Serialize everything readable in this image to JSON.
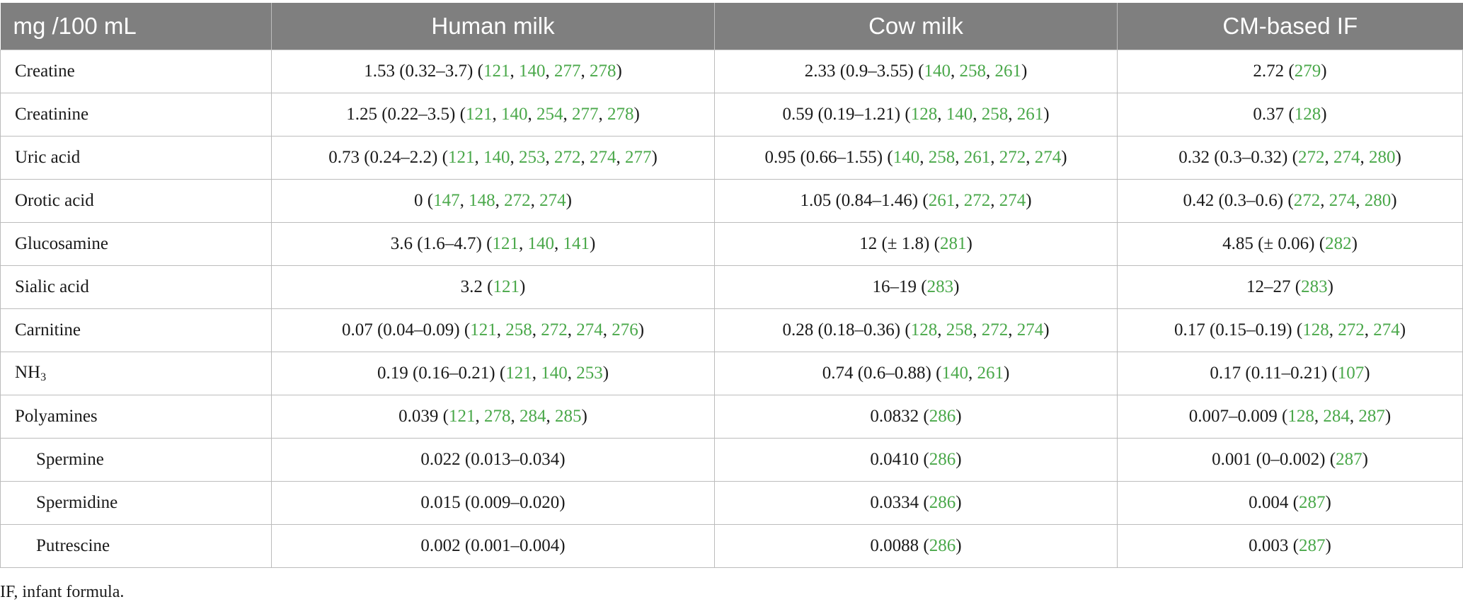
{
  "table": {
    "headers": [
      "mg /100 mL",
      "Human milk",
      "Cow milk",
      "CM-based IF"
    ],
    "rows": [
      {
        "label": "Creatine",
        "sub": false,
        "cells": [
          {
            "value": "1.53 (0.32–3.7)",
            "refs": [
              "121",
              "140",
              "277",
              "278"
            ]
          },
          {
            "value": "2.33 (0.9–3.55)",
            "refs": [
              "140",
              "258",
              "261"
            ]
          },
          {
            "value": "2.72",
            "refs": [
              "279"
            ]
          }
        ]
      },
      {
        "label": "Creatinine",
        "sub": false,
        "cells": [
          {
            "value": "1.25 (0.22–3.5)",
            "refs": [
              "121",
              "140",
              "254",
              "277",
              "278"
            ]
          },
          {
            "value": "0.59 (0.19–1.21)",
            "refs": [
              "128",
              "140",
              "258",
              "261"
            ]
          },
          {
            "value": "0.37",
            "refs": [
              "128"
            ]
          }
        ]
      },
      {
        "label": "Uric acid",
        "sub": false,
        "cells": [
          {
            "value": "0.73 (0.24–2.2)",
            "refs": [
              "121",
              "140",
              "253",
              "272",
              "274",
              "277"
            ]
          },
          {
            "value": "0.95 (0.66–1.55)",
            "refs": [
              "140",
              "258",
              "261",
              "272",
              "274"
            ]
          },
          {
            "value": "0.32 (0.3–0.32)",
            "refs": [
              "272",
              "274",
              "280"
            ]
          }
        ]
      },
      {
        "label": "Orotic acid",
        "sub": false,
        "cells": [
          {
            "value": "0",
            "refs": [
              "147",
              "148",
              "272",
              "274"
            ]
          },
          {
            "value": "1.05 (0.84–1.46)",
            "refs": [
              "261",
              "272",
              "274"
            ]
          },
          {
            "value": "0.42 (0.3–0.6)",
            "refs": [
              "272",
              "274",
              "280"
            ]
          }
        ]
      },
      {
        "label": "Glucosamine",
        "sub": false,
        "cells": [
          {
            "value": "3.6 (1.6–4.7)",
            "refs": [
              "121",
              "140",
              "141"
            ]
          },
          {
            "value": "12 (± 1.8)",
            "refs": [
              "281"
            ]
          },
          {
            "value": "4.85 (± 0.06)",
            "refs": [
              "282"
            ]
          }
        ]
      },
      {
        "label": "Sialic acid",
        "sub": false,
        "cells": [
          {
            "value": "3.2",
            "refs": [
              "121"
            ]
          },
          {
            "value": "16–19",
            "refs": [
              "283"
            ]
          },
          {
            "value": "12–27",
            "refs": [
              "283"
            ]
          }
        ]
      },
      {
        "label": "Carnitine",
        "sub": false,
        "cells": [
          {
            "value": "0.07 (0.04–0.09)",
            "refs": [
              "121",
              "258",
              "272",
              "274",
              "276"
            ]
          },
          {
            "value": "0.28 (0.18–0.36)",
            "refs": [
              "128",
              "258",
              "272",
              "274"
            ]
          },
          {
            "value": "0.17 (0.15–0.19)",
            "refs": [
              "128",
              "272",
              "274"
            ]
          }
        ]
      },
      {
        "label": "NH",
        "label_sub": "3",
        "sub": false,
        "cells": [
          {
            "value": "0.19 (0.16–0.21)",
            "refs": [
              "121",
              "140",
              "253"
            ]
          },
          {
            "value": "0.74 (0.6–0.88)",
            "refs": [
              "140",
              "261"
            ]
          },
          {
            "value": "0.17 (0.11–0.21)",
            "refs": [
              "107"
            ]
          }
        ]
      },
      {
        "label": "Polyamines",
        "sub": false,
        "cells": [
          {
            "value": "0.039",
            "refs": [
              "121",
              "278",
              "284",
              "285"
            ]
          },
          {
            "value": "0.0832",
            "refs": [
              "286"
            ]
          },
          {
            "value": "0.007–0.009",
            "refs": [
              "128",
              "284",
              "287"
            ]
          }
        ]
      },
      {
        "label": "Spermine",
        "sub": true,
        "cells": [
          {
            "value": "0.022 (0.013–0.034)",
            "refs": []
          },
          {
            "value": "0.0410",
            "refs": [
              "286"
            ]
          },
          {
            "value": "0.001 (0–0.002)",
            "refs": [
              "287"
            ]
          }
        ]
      },
      {
        "label": "Spermidine",
        "sub": true,
        "cells": [
          {
            "value": "0.015 (0.009–0.020)",
            "refs": []
          },
          {
            "value": "0.0334",
            "refs": [
              "286"
            ]
          },
          {
            "value": "0.004",
            "refs": [
              "287"
            ]
          }
        ]
      },
      {
        "label": "Putrescine",
        "sub": true,
        "cells": [
          {
            "value": "0.002 (0.001–0.004)",
            "refs": []
          },
          {
            "value": "0.0088",
            "refs": [
              "286"
            ]
          },
          {
            "value": "0.003",
            "refs": [
              "287"
            ]
          }
        ]
      }
    ]
  },
  "footnote": "IF, infant formula.",
  "colors": {
    "header_bg": "#7f7f7f",
    "header_text": "#ffffff",
    "reference_link": "#4aa84a",
    "grid_line": "#bcbcbc"
  }
}
